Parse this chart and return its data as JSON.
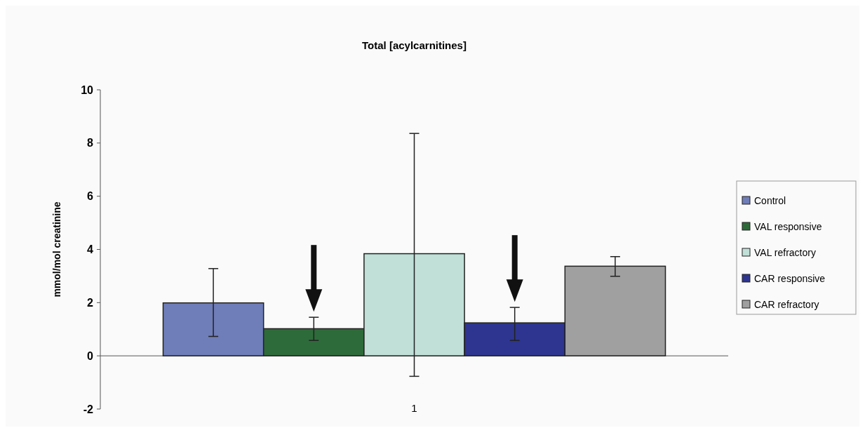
{
  "chart_data": {
    "type": "bar",
    "title": "Total [acylcarnitines]",
    "ylabel": "mmol/mol creatinine",
    "categories": [
      "1"
    ],
    "series": [
      {
        "name": "Control",
        "color": "#6f7db8",
        "values": [
          1.99
        ],
        "errors": [
          [
            0.73,
            3.28
          ]
        ]
      },
      {
        "name": "VAL responsive",
        "color": "#2e6b3a",
        "values": [
          1.02
        ],
        "errors": [
          [
            0.58,
            1.45
          ]
        ]
      },
      {
        "name": "VAL refractory",
        "color": "#c0e0d8",
        "values": [
          3.84
        ],
        "errors": [
          [
            -0.77,
            8.36
          ]
        ]
      },
      {
        "name": "CAR responsive",
        "color": "#2e3590",
        "values": [
          1.24
        ],
        "errors": [
          [
            0.58,
            1.82
          ]
        ]
      },
      {
        "name": "CAR refractory",
        "color": "#a0a0a0",
        "values": [
          3.37
        ],
        "errors": [
          [
            2.99,
            3.73
          ]
        ]
      }
    ],
    "ylim": [
      -2,
      10
    ],
    "yticks": [
      -2,
      0,
      2,
      4,
      6,
      8,
      10
    ],
    "grid": false,
    "legend": "right"
  }
}
